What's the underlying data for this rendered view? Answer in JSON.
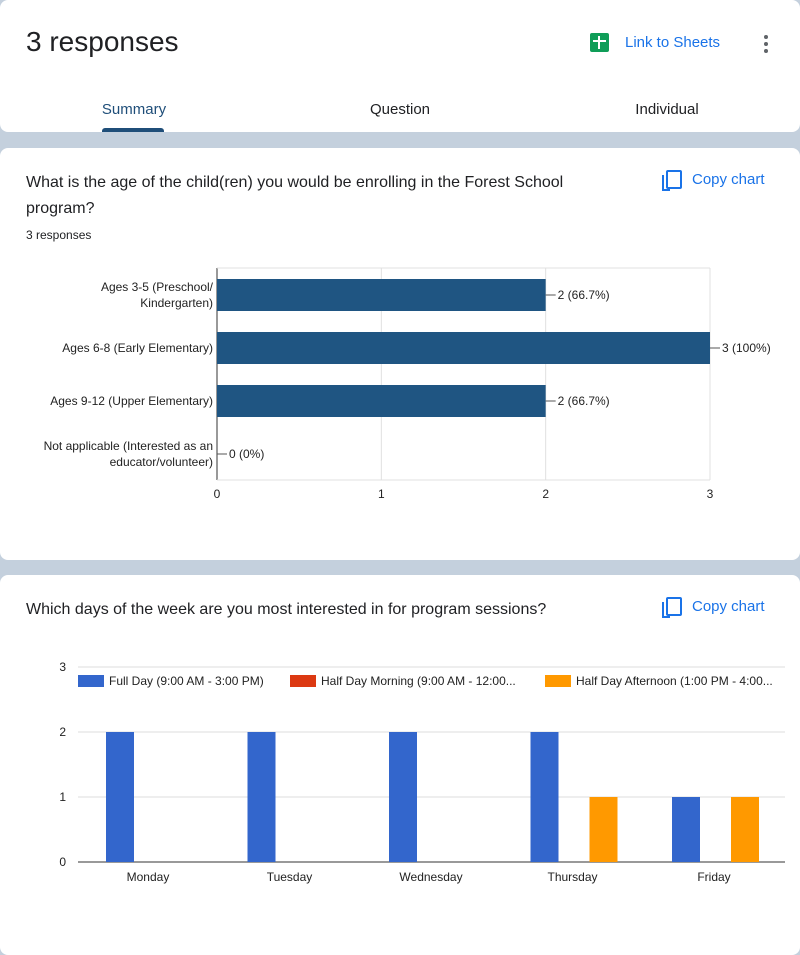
{
  "header": {
    "title": "3 responses",
    "link_sheets": "Link to Sheets",
    "tabs": [
      "Summary",
      "Question",
      "Individual"
    ]
  },
  "q1": {
    "question": "What is the age of the child(ren) you would be enrolling in the Forest School program?",
    "count": "3 responses",
    "copy": "Copy chart"
  },
  "q2": {
    "question": "Which days of the week are you most interested in for program sessions?",
    "copy": "Copy chart"
  },
  "chart_data": [
    {
      "type": "bar",
      "orientation": "horizontal",
      "categories": [
        [
          "Ages 3-5 (Preschool/",
          "Kindergarten)"
        ],
        [
          "Ages 6-8 (Early Elementary)"
        ],
        [
          "Ages 9-12 (Upper Elementary)"
        ],
        [
          "Not applicable (Interested as an",
          "educator/volunteer)"
        ]
      ],
      "values": [
        2,
        3,
        2,
        0
      ],
      "data_labels": [
        "2 (66.7%)",
        "3 (100%)",
        "2 (66.7%)",
        "0 (0%)"
      ],
      "xlim": [
        0,
        3
      ],
      "xticks": [
        "0",
        "1",
        "2",
        "3"
      ],
      "color": "#1f5582"
    },
    {
      "type": "bar",
      "categories": [
        "Monday",
        "Tuesday",
        "Wednesday",
        "Thursday",
        "Friday"
      ],
      "series": [
        {
          "name": "Full Day (9:00 AM - 3:00 PM)",
          "color": "#3366cc",
          "values": [
            2,
            2,
            2,
            2,
            1
          ]
        },
        {
          "name": "Half Day Morning (9:00 AM - 12:00...",
          "color": "#dc3912",
          "values": [
            0,
            0,
            0,
            0,
            0
          ]
        },
        {
          "name": "Half Day Afternoon (1:00 PM - 4:00...",
          "color": "#ff9900",
          "values": [
            0,
            0,
            0,
            1,
            1
          ]
        }
      ],
      "ylim": [
        0,
        3
      ],
      "yticks": [
        "0",
        "1",
        "2",
        "3"
      ],
      "legend": "top"
    }
  ]
}
